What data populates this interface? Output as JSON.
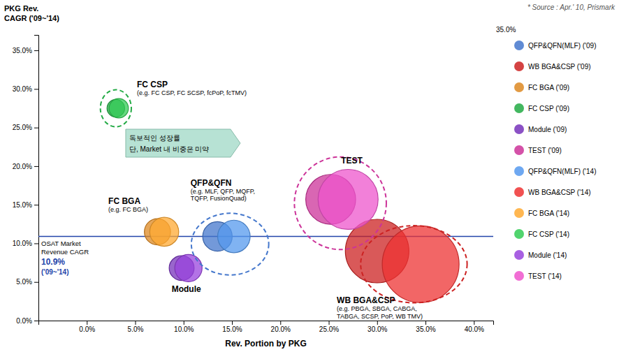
{
  "chart_data": {
    "type": "bubble",
    "x_label": "Rev. Portion by PKG",
    "y_label": [
      "PKG Rev.",
      "CAGR ('09~'14)"
    ],
    "source": "* Source :  Apr.' 10, Prismark",
    "xlim": [
      -0.05,
      0.42
    ],
    "ylim": [
      0.0,
      0.37
    ],
    "xticks": [
      {
        "value": 0.0,
        "label": "0.0%"
      },
      {
        "value": 0.05,
        "label": "5.0%"
      },
      {
        "value": 0.1,
        "label": "10.0%"
      },
      {
        "value": 0.15,
        "label": "15.0%"
      },
      {
        "value": 0.2,
        "label": "20.0%"
      },
      {
        "value": 0.25,
        "label": "25.0%"
      },
      {
        "value": 0.3,
        "label": "30.0%"
      },
      {
        "value": 0.35,
        "label": "35.0%"
      },
      {
        "value": 0.4,
        "label": "40.0%"
      }
    ],
    "yticks": [
      {
        "value": 0.0,
        "label": "0.0%"
      },
      {
        "value": 0.05,
        "label": "5.0%"
      },
      {
        "value": 0.1,
        "label": "10.0%"
      },
      {
        "value": 0.15,
        "label": "15.0%"
      },
      {
        "value": 0.2,
        "label": "20.0%"
      },
      {
        "value": 0.25,
        "label": "25.0%"
      },
      {
        "value": 0.3,
        "label": "30.0%"
      },
      {
        "value": 0.35,
        "label": "35.0%"
      }
    ],
    "y_top_label": "35.0%",
    "grid": false,
    "legend": "right",
    "series": [
      {
        "name": "QFP&QFN(MLF) ('09)",
        "color": "#4477CC",
        "x": [
          0.135
        ],
        "values": [
          0.109
        ],
        "sizes": [
          1400
        ]
      },
      {
        "name": "WB BGA&CSP ('09)",
        "color": "#CC2222",
        "x": [
          0.3
        ],
        "values": [
          0.09
        ],
        "sizes": [
          6500
        ]
      },
      {
        "name": "FC BGA ('09)",
        "color": "#DD8822",
        "x": [
          0.073
        ],
        "values": [
          0.115
        ],
        "sizes": [
          1100
        ]
      },
      {
        "name": "FC CSP ('09)",
        "color": "#22AA44",
        "x": [
          0.03
        ],
        "values": [
          0.275
        ],
        "sizes": [
          500
        ]
      },
      {
        "name": "Module ('09)",
        "color": "#7733BB",
        "x": [
          0.098
        ],
        "values": [
          0.068
        ],
        "sizes": [
          1000
        ]
      },
      {
        "name": "TEST ('09)",
        "color": "#CC3399",
        "x": [
          0.252
        ],
        "values": [
          0.157
        ],
        "sizes": [
          4000
        ]
      },
      {
        "name": "QFP&QFN(MLF) ('14)",
        "color": "#5599EE",
        "x": [
          0.152
        ],
        "values": [
          0.109
        ],
        "sizes": [
          1700
        ]
      },
      {
        "name": "WB BGA&CSP ('14)",
        "color": "#EE3333",
        "x": [
          0.345
        ],
        "values": [
          0.073
        ],
        "sizes": [
          9500
        ]
      },
      {
        "name": "FC BGA ('14)",
        "color": "#FFAA33",
        "x": [
          0.08
        ],
        "values": [
          0.115
        ],
        "sizes": [
          1350
        ]
      },
      {
        "name": "FC CSP ('14)",
        "color": "#33CC55",
        "x": [
          0.033
        ],
        "values": [
          0.275
        ],
        "sizes": [
          600
        ]
      },
      {
        "name": "Module ('14)",
        "color": "#9944DD",
        "x": [
          0.105
        ],
        "values": [
          0.068
        ],
        "sizes": [
          1200
        ]
      },
      {
        "name": "TEST ('14)",
        "color": "#EE55CC",
        "x": [
          0.27
        ],
        "values": [
          0.157
        ],
        "sizes": [
          5800
        ]
      }
    ],
    "reference_line": {
      "value": 0.109,
      "color": "#2244AA",
      "label_lines": [
        "OSAT Market",
        "Revenue CAGR"
      ],
      "value_label": "10.9%",
      "period": "('09~'14)"
    },
    "highlights": [
      {
        "x": 0.03,
        "y": 0.275,
        "w": 0.032,
        "h": 0.048,
        "color": "#22AA44"
      },
      {
        "x": 0.148,
        "y": 0.099,
        "w": 0.08,
        "h": 0.08,
        "color": "#4477CC"
      },
      {
        "x": 0.262,
        "y": 0.152,
        "w": 0.095,
        "h": 0.12,
        "color": "#CC3399"
      },
      {
        "x": 0.338,
        "y": 0.073,
        "w": 0.11,
        "h": 0.1,
        "color": "#CC2222"
      }
    ],
    "annotations": [
      {
        "title": "FC CSP",
        "lines": [
          "(e.g. FC CSP, FC SCSP, fcPoP, fcTMV)"
        ]
      },
      {
        "title": "FC BGA",
        "lines": [
          "(e.g. FC BGA)"
        ]
      },
      {
        "title": "QFP&QFN",
        "lines": [
          "(e.g. MLF, QFP, MQFP,",
          "TQFP, FusionQuad)"
        ]
      },
      {
        "title": "Module",
        "lines": []
      },
      {
        "title": "TEST",
        "lines": []
      },
      {
        "title": "WB BGA&CSP",
        "lines": [
          "(e.g. PBGA, SBGA, CABGA,",
          "TABGA, SCSP, PoP, WB TMV)"
        ]
      }
    ],
    "callout": [
      "독보적인 성장률",
      "단, Market 내 비중은 미약"
    ]
  }
}
